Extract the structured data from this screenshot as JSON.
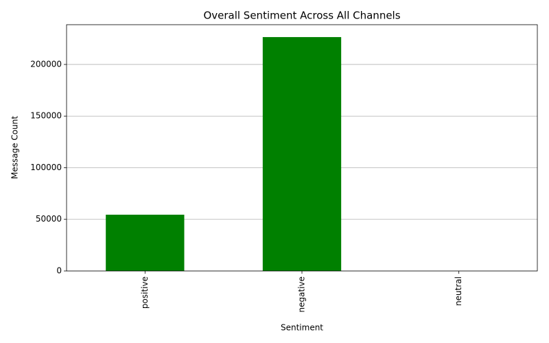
{
  "chart_data": {
    "type": "bar",
    "title": "Overall Sentiment Across All Channels",
    "x_label": "Sentiment",
    "y_label": "Message Count",
    "categories": [
      "positive",
      "negative",
      "neutral"
    ],
    "values": [
      54500,
      226500,
      0
    ],
    "color": "#008000",
    "ylim": [
      0,
      238500
    ],
    "yticks": [
      0,
      50000,
      100000,
      150000,
      200000
    ],
    "grid": true
  }
}
